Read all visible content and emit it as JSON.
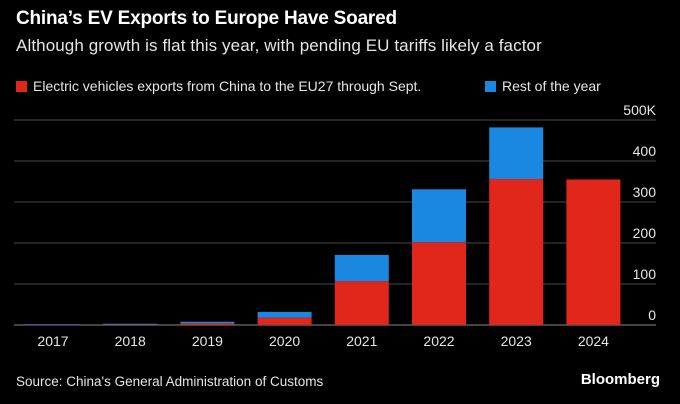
{
  "header": {
    "title": "China’s EV Exports to Europe Have Soared",
    "subtitle": "Although growth is flat this year, with pending EU tariffs likely a factor"
  },
  "footer": {
    "source": "Source: China's General Administration of Customs",
    "brand": "Bloomberg"
  },
  "colors": {
    "background": "#000000",
    "series_through_sept": "#e1261c",
    "series_rest_of_year": "#1a88e0",
    "gridline": "#4a4a4a",
    "axis_text": "#e6e6e6"
  },
  "chart_data": {
    "type": "bar",
    "stacked": true,
    "categories": [
      "2017",
      "2018",
      "2019",
      "2020",
      "2021",
      "2022",
      "2023",
      "2024"
    ],
    "series": [
      {
        "name": "Electric vehicles exports from China to the EU27 through Sept.",
        "values": [
          1,
          2,
          4,
          18,
          107,
          202,
          356,
          355
        ]
      },
      {
        "name": "Rest of the year",
        "values": [
          1,
          1,
          4,
          14,
          64,
          129,
          126,
          0
        ]
      }
    ],
    "y_ticks": [
      "0",
      "100",
      "200",
      "300",
      "400",
      "500K"
    ],
    "ylim": [
      0,
      500
    ],
    "y_axis_side": "right",
    "grid": true,
    "legend_position": "top-left"
  }
}
